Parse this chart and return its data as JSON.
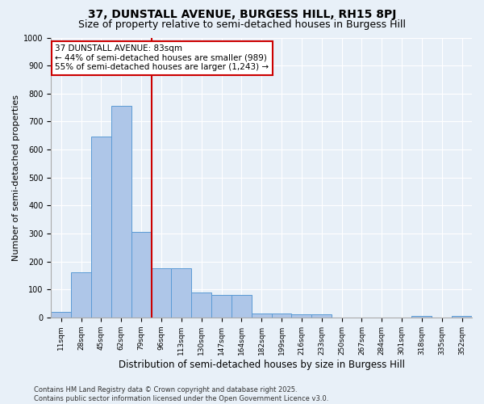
{
  "title1": "37, DUNSTALL AVENUE, BURGESS HILL, RH15 8PJ",
  "title2": "Size of property relative to semi-detached houses in Burgess Hill",
  "xlabel": "Distribution of semi-detached houses by size in Burgess Hill",
  "ylabel": "Number of semi-detached properties",
  "categories": [
    "11sqm",
    "28sqm",
    "45sqm",
    "62sqm",
    "79sqm",
    "96sqm",
    "113sqm",
    "130sqm",
    "147sqm",
    "164sqm",
    "182sqm",
    "199sqm",
    "216sqm",
    "233sqm",
    "250sqm",
    "267sqm",
    "284sqm",
    "301sqm",
    "318sqm",
    "335sqm",
    "352sqm"
  ],
  "values": [
    20,
    160,
    645,
    755,
    305,
    175,
    175,
    90,
    80,
    80,
    15,
    15,
    10,
    10,
    0,
    0,
    0,
    0,
    5,
    0,
    5
  ],
  "bar_color": "#aec6e8",
  "bar_edge_color": "#5b9bd5",
  "red_line_color": "#cc0000",
  "annotation_line1": "37 DUNSTALL AVENUE: 83sqm",
  "annotation_line2": "← 44% of semi-detached houses are smaller (989)",
  "annotation_line3": "55% of semi-detached houses are larger (1,243) →",
  "annotation_box_color": "#ffffff",
  "annotation_box_edge": "#cc0000",
  "ylim": [
    0,
    1000
  ],
  "yticks": [
    0,
    100,
    200,
    300,
    400,
    500,
    600,
    700,
    800,
    900,
    1000
  ],
  "footer_line1": "Contains HM Land Registry data © Crown copyright and database right 2025.",
  "footer_line2": "Contains public sector information licensed under the Open Government Licence v3.0.",
  "bg_color": "#e8f0f8",
  "title1_fontsize": 10,
  "title2_fontsize": 9,
  "tick_fontsize": 6.5,
  "ylabel_fontsize": 8,
  "xlabel_fontsize": 8.5,
  "annotation_fontsize": 7.5,
  "footer_fontsize": 6
}
